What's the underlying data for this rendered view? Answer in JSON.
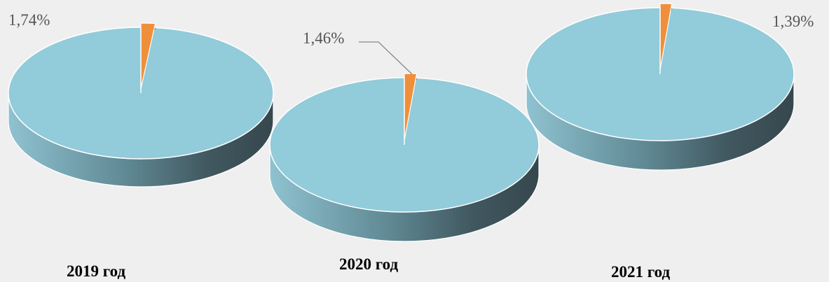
{
  "chart_data": [
    {
      "type": "pie",
      "title": "2019 год",
      "categories": [
        "",
        ""
      ],
      "values": [
        98.26,
        1.74
      ],
      "data_labels": [
        "",
        "1,74%"
      ],
      "colors": [
        "#92cbd9",
        "#f08f3b"
      ]
    },
    {
      "type": "pie",
      "title": "2020 год",
      "categories": [
        "",
        ""
      ],
      "values": [
        98.54,
        1.46
      ],
      "data_labels": [
        "",
        "1,46%"
      ],
      "colors": [
        "#92cbd9",
        "#f08f3b"
      ]
    },
    {
      "type": "pie",
      "title": "2021 год",
      "categories": [
        "",
        ""
      ],
      "values": [
        98.61,
        1.39
      ],
      "data_labels": [
        "",
        "1,39%"
      ],
      "colors": [
        "#92cbd9",
        "#f08f3b"
      ]
    }
  ],
  "colors": {
    "background": "#efefef",
    "main_slice": "#92cbd9",
    "main_side_light": "#8fc2d0",
    "main_side_dark": "#36474d",
    "small_slice": "#f08f3b",
    "small_side": "#b4621e",
    "label_text": "#555555",
    "title_text": "#000000"
  }
}
